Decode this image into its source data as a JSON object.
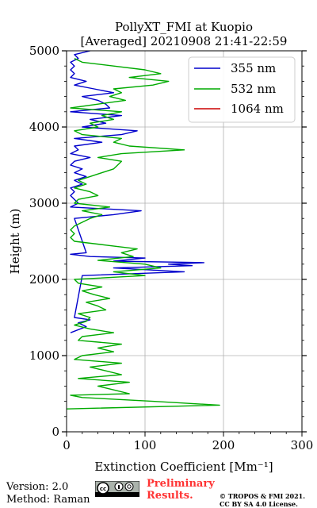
{
  "chart_data": {
    "type": "line",
    "title": "PollyXT_FMI at Kuopio",
    "subtitle": "[Averaged] 20210908 21:41-22:59",
    "xlabel": "Extinction Coefficient [Mm⁻¹]",
    "ylabel": "Height (m)",
    "xlim": [
      0,
      300
    ],
    "ylim": [
      0,
      5000
    ],
    "x_ticks": [
      "0",
      "100",
      "200",
      "300"
    ],
    "y_ticks": [
      "0",
      "1000",
      "2000",
      "3000",
      "4000",
      "5000"
    ],
    "grid": true,
    "legend_position": "top-right",
    "series": [
      {
        "name": "355 nm",
        "color": "#0000cc",
        "y": [
          1300,
          1380,
          1430,
          1470,
          1500,
          2050,
          2100,
          2150,
          2180,
          2200,
          2220,
          2240,
          2280,
          2300,
          2330,
          2350,
          2800,
          2850,
          2900,
          2950,
          3000,
          3050,
          3100,
          3150,
          3200,
          3250,
          3300,
          3350,
          3400,
          3450,
          3500,
          3550,
          3600,
          3650,
          3700,
          3750,
          3800,
          3850,
          3900,
          3950,
          4000,
          4050,
          4100,
          4150,
          4200,
          4250,
          4300,
          4350,
          4400,
          4450,
          4500,
          4550,
          4600,
          4650,
          4700,
          4750,
          4800,
          4850,
          4900,
          4950,
          5000
        ],
        "x": [
          5,
          25,
          15,
          30,
          10,
          20,
          150,
          60,
          160,
          130,
          175,
          60,
          100,
          30,
          5,
          25,
          10,
          60,
          95,
          5,
          15,
          10,
          5,
          10,
          5,
          20,
          10,
          25,
          10,
          20,
          5,
          10,
          30,
          5,
          15,
          10,
          45,
          10,
          70,
          90,
          20,
          50,
          30,
          70,
          5,
          55,
          50,
          40,
          20,
          60,
          35,
          10,
          25,
          5,
          10,
          5,
          10,
          5,
          15,
          10,
          30
        ]
      },
      {
        "name": "532 nm",
        "color": "#00aa00",
        "y": [
          300,
          350,
          400,
          450,
          480,
          500,
          550,
          600,
          650,
          700,
          750,
          800,
          850,
          900,
          950,
          1000,
          1050,
          1100,
          1150,
          1200,
          1250,
          1300,
          1350,
          1400,
          1450,
          1500,
          1550,
          1600,
          1650,
          1700,
          1750,
          1800,
          1850,
          1900,
          1950,
          2000,
          2050,
          2100,
          2150,
          2200,
          2250,
          2300,
          2350,
          2400,
          2450,
          2500,
          2550,
          2600,
          2650,
          2700,
          2750,
          2800,
          2850,
          2900,
          2950,
          3000,
          3050,
          3100,
          3150,
          3200,
          3250,
          3300,
          3350,
          3400,
          3450,
          3500,
          3550,
          3600,
          3650,
          3700,
          3750,
          3800,
          3850,
          3900,
          3950,
          4000,
          4050,
          4100,
          4150,
          4200,
          4250,
          4300,
          4350,
          4400,
          4450,
          4500,
          4550,
          4600,
          4650,
          4700,
          4750,
          4800,
          4850,
          4900
        ],
        "x": [
          0,
          195,
          110,
          20,
          5,
          80,
          60,
          40,
          80,
          15,
          70,
          50,
          30,
          70,
          10,
          20,
          60,
          40,
          70,
          15,
          20,
          60,
          30,
          10,
          25,
          30,
          15,
          50,
          40,
          25,
          55,
          35,
          20,
          45,
          15,
          10,
          100,
          60,
          120,
          100,
          40,
          85,
          70,
          90,
          50,
          10,
          5,
          10,
          5,
          10,
          20,
          30,
          45,
          20,
          55,
          10,
          15,
          40,
          30,
          10,
          25,
          15,
          30,
          45,
          60,
          65,
          70,
          40,
          70,
          150,
          80,
          60,
          70,
          20,
          10,
          40,
          30,
          60,
          45,
          70,
          5,
          40,
          75,
          55,
          70,
          60,
          110,
          130,
          80,
          120,
          100,
          60,
          20,
          10
        ]
      },
      {
        "name": "1064 nm",
        "color": "#cc0000",
        "y": [],
        "x": []
      }
    ]
  },
  "footer": {
    "version": "Version: 2.0",
    "method": "Method: Raman",
    "preliminary_line1": "Preliminary",
    "preliminary_line2": "Results.",
    "copyright_line1": "© TROPOS & FMI 2021.",
    "copyright_line2": "CC BY SA 4.0 License."
  }
}
